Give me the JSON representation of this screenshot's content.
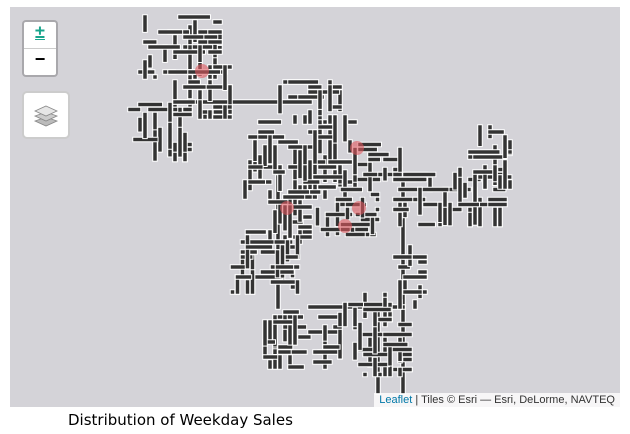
{
  "map": {
    "tile_color": "#d4d3d8",
    "street_fill": "#333333",
    "street_outline": "#ffffff",
    "marker_color": "#e0585f",
    "controls": {
      "zoom_in": "±",
      "zoom_out": "−",
      "layers_icon": "layers-icon"
    },
    "attribution": {
      "leaflet_link": "Leaflet",
      "separator": " | ",
      "tiles_text": "Tiles © Esri — Esri, DeLorme, NAVTEQ"
    }
  },
  "caption": "Distribution of Weekday Sales"
}
